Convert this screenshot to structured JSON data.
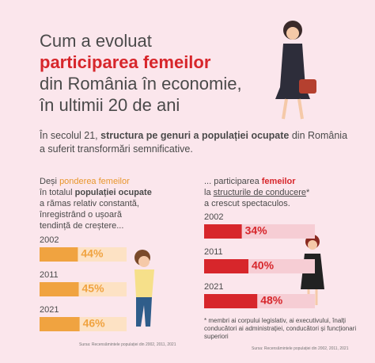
{
  "header": {
    "title_lines": [
      "Cum a evoluat",
      "participarea femeilor",
      "din România în economie,",
      "în ultimii 20 de ani"
    ]
  },
  "intro": {
    "segments": [
      "În secolul 21, ",
      "structura pe genuri a populației ocupate",
      " din România",
      "a suferit transformări semnificative."
    ]
  },
  "chart_data": [
    {
      "type": "bar",
      "orientation": "horizontal",
      "subtitle": [
        "Deși ",
        "ponderea femeilor",
        "în totalul ",
        "populației ocupate",
        "a rămas relativ constantă,",
        "înregistrând o ușoară",
        "tendință de creștere..."
      ],
      "categories": [
        "2002",
        "2011",
        "2021"
      ],
      "values": [
        44,
        45,
        46
      ],
      "value_labels": [
        "44%",
        "45%",
        "46%"
      ],
      "color": "#f0a340",
      "xlim": [
        0,
        100
      ],
      "source": "Sursa: Recensămintele populației din 2002, 2011, 2021"
    },
    {
      "type": "bar",
      "orientation": "horizontal",
      "subtitle": [
        "... participarea ",
        "femeilor",
        "la ",
        "structurile de conducere",
        "*",
        "a crescut spectaculos."
      ],
      "categories": [
        "2002",
        "2011",
        "2021"
      ],
      "values": [
        34,
        40,
        48
      ],
      "value_labels": [
        "34%",
        "40%",
        "48%"
      ],
      "color": "#d7262b",
      "xlim": [
        0,
        100
      ],
      "footnote": "* membri ai corpului legislativ, ai executivului, înalți conducători ai administrației, conducători și funcționari superiori",
      "source": "Sursa: Recensămintele populației din 2002, 2011, 2021"
    }
  ]
}
